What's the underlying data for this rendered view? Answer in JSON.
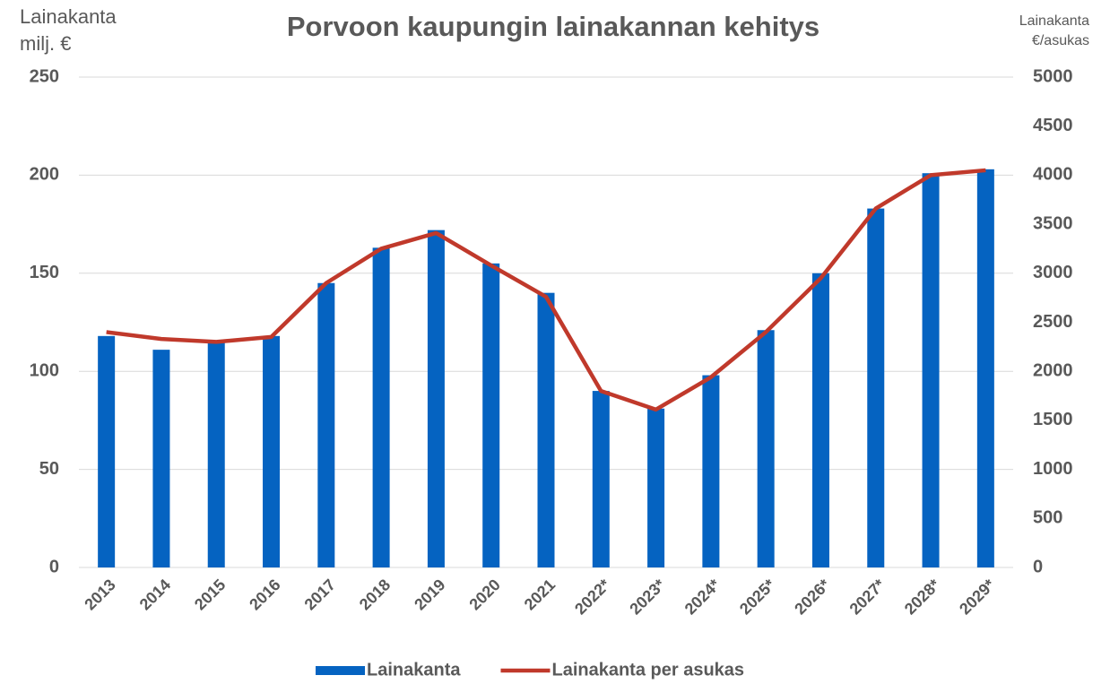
{
  "chart_data": {
    "type": "bar_line",
    "title": "Porvoon kaupungin lainakannan kehitys",
    "ylabel": [
      "Lainakanta",
      "milj. €"
    ],
    "y2label": [
      "Lainakanta",
      "€/asukas"
    ],
    "categories": [
      "2013",
      "2014",
      "2015",
      "2016",
      "2017",
      "2018",
      "2019",
      "2020",
      "2021",
      "2022*",
      "2023*",
      "2024*",
      "2025*",
      "2026*",
      "2027*",
      "2028*",
      "2029*"
    ],
    "series": [
      {
        "name": "Lainakanta",
        "type": "bar",
        "color": "#0563c1",
        "axis": "y",
        "values": [
          118,
          111,
          115,
          118,
          145,
          163,
          172,
          155,
          140,
          90,
          81,
          98,
          121,
          150,
          183,
          201,
          203
        ]
      },
      {
        "name": "Lainakanta per asukas",
        "type": "line",
        "color": "#c0392b",
        "axis": "y2",
        "values": [
          2400,
          2330,
          2300,
          2350,
          2900,
          3250,
          3410,
          3080,
          2760,
          1800,
          1610,
          1940,
          2400,
          2950,
          3660,
          4000,
          4050
        ]
      }
    ],
    "ylim": [
      0,
      250
    ],
    "yticks": [
      0,
      50,
      100,
      150,
      200,
      250
    ],
    "y2lim": [
      0,
      5000
    ],
    "y2ticks": [
      0,
      500,
      1000,
      1500,
      2000,
      2500,
      3000,
      3500,
      4000,
      4500,
      5000
    ],
    "grid": true,
    "legend": "bottom"
  }
}
